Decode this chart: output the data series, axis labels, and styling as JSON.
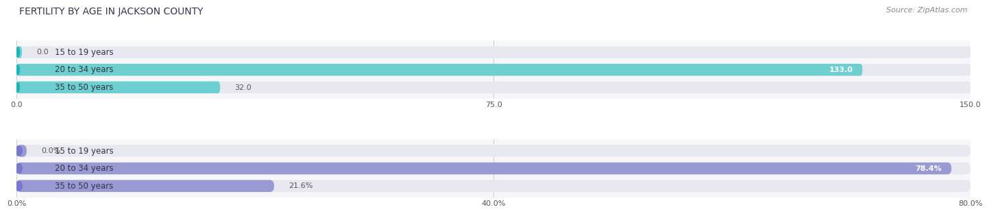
{
  "title": "FERTILITY BY AGE IN JACKSON COUNTY",
  "source": "Source: ZipAtlas.com",
  "top_chart": {
    "categories": [
      "15 to 19 years",
      "20 to 34 years",
      "35 to 50 years"
    ],
    "values": [
      0.0,
      133.0,
      32.0
    ],
    "xlim": [
      0,
      150
    ],
    "xticks": [
      0.0,
      75.0,
      150.0
    ],
    "xtick_labels": [
      "0.0",
      "75.0",
      "150.0"
    ],
    "bar_color_main": "#1ab5bb",
    "bar_color_light": "#6dcfcf",
    "bar_bg_color": "#e8e8f0",
    "value_labels": [
      "0.0",
      "133.0",
      "32.0"
    ],
    "label_inside_threshold": 0.75
  },
  "bottom_chart": {
    "categories": [
      "15 to 19 years",
      "20 to 34 years",
      "35 to 50 years"
    ],
    "values": [
      0.0,
      78.4,
      21.6
    ],
    "xlim": [
      0,
      80
    ],
    "xticks": [
      0.0,
      40.0,
      80.0
    ],
    "xtick_labels": [
      "0.0%",
      "40.0%",
      "80.0%"
    ],
    "bar_color_main": "#7878cc",
    "bar_color_light": "#9999d4",
    "bar_bg_color": "#e8e8f0",
    "value_labels": [
      "0.0%",
      "78.4%",
      "21.6%"
    ],
    "label_inside_threshold": 0.75
  },
  "bg_color": "#f7f7fa",
  "title_color": "#333355",
  "source_color": "#888888",
  "title_fontsize": 10,
  "source_fontsize": 8,
  "cat_label_fontsize": 8.5,
  "val_label_fontsize": 8,
  "tick_fontsize": 8
}
